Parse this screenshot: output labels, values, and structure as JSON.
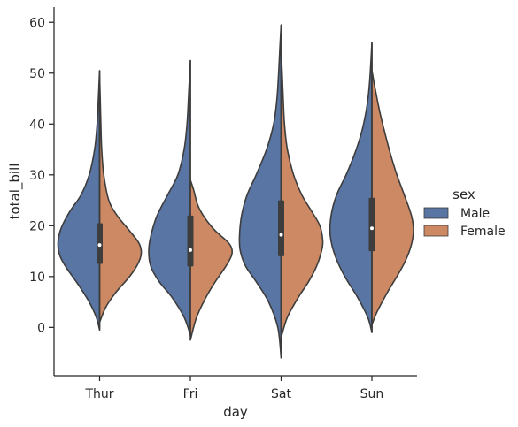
{
  "chart_data": {
    "type": "violin",
    "split": true,
    "xlabel": "day",
    "ylabel": "total_bill",
    "ylim": [
      -9.5,
      63
    ],
    "yticks": [
      0,
      10,
      20,
      30,
      40,
      50,
      60
    ],
    "categories": [
      "Thur",
      "Fri",
      "Sat",
      "Sun"
    ],
    "legend": {
      "title": "sex",
      "placement": "right",
      "entries": [
        "Male",
        "Female"
      ]
    },
    "grid": false,
    "colors": {
      "Male": "#5975a4",
      "Female": "#cc8963",
      "outline": "#3d3d3d",
      "median_dot": "#ffffff"
    },
    "series": [
      {
        "name": "Male",
        "violins": [
          {
            "category": "Thur",
            "min": -0.5,
            "max": 50.5,
            "q1": 12.5,
            "median": 16.2,
            "q3": 20.5,
            "profile": [
              [
                -0.5,
                0.0
              ],
              [
                2,
                0.08
              ],
              [
                5,
                0.25
              ],
              [
                8,
                0.48
              ],
              [
                10,
                0.65
              ],
              [
                12,
                0.82
              ],
              [
                14,
                0.95
              ],
              [
                16,
                1.0
              ],
              [
                18,
                0.98
              ],
              [
                20,
                0.9
              ],
              [
                23,
                0.7
              ],
              [
                26,
                0.45
              ],
              [
                30,
                0.25
              ],
              [
                35,
                0.12
              ],
              [
                40,
                0.06
              ],
              [
                45,
                0.03
              ],
              [
                50.5,
                0.0
              ]
            ]
          },
          {
            "category": "Fri",
            "min": -1.5,
            "max": 52.5,
            "q1": 12,
            "median": 15.2,
            "q3": 22,
            "profile": [
              [
                -1.5,
                0.0
              ],
              [
                2,
                0.15
              ],
              [
                6,
                0.45
              ],
              [
                9,
                0.75
              ],
              [
                12,
                0.95
              ],
              [
                15,
                1.0
              ],
              [
                18,
                0.95
              ],
              [
                22,
                0.8
              ],
              [
                26,
                0.55
              ],
              [
                30,
                0.3
              ],
              [
                35,
                0.15
              ],
              [
                40,
                0.08
              ],
              [
                46,
                0.04
              ],
              [
                52.5,
                0.0
              ]
            ]
          },
          {
            "category": "Sat",
            "min": -6,
            "max": 59.5,
            "q1": 14,
            "median": 18.2,
            "q3": 25,
            "profile": [
              [
                -6,
                0.0
              ],
              [
                0,
                0.08
              ],
              [
                5,
                0.3
              ],
              [
                9,
                0.6
              ],
              [
                12,
                0.85
              ],
              [
                15,
                0.98
              ],
              [
                18,
                1.0
              ],
              [
                22,
                0.95
              ],
              [
                26,
                0.82
              ],
              [
                30,
                0.6
              ],
              [
                35,
                0.35
              ],
              [
                40,
                0.18
              ],
              [
                45,
                0.1
              ],
              [
                50,
                0.06
              ],
              [
                55,
                0.03
              ],
              [
                59.5,
                0.0
              ]
            ]
          },
          {
            "category": "Sun",
            "min": -1,
            "max": 56,
            "q1": 15,
            "median": 19.5,
            "q3": 25.5,
            "profile": [
              [
                -1,
                0.0
              ],
              [
                2,
                0.1
              ],
              [
                6,
                0.35
              ],
              [
                10,
                0.65
              ],
              [
                14,
                0.88
              ],
              [
                18,
                1.0
              ],
              [
                22,
                0.98
              ],
              [
                26,
                0.85
              ],
              [
                30,
                0.62
              ],
              [
                34,
                0.42
              ],
              [
                38,
                0.26
              ],
              [
                42,
                0.15
              ],
              [
                46,
                0.08
              ],
              [
                50,
                0.04
              ],
              [
                56,
                0.0
              ]
            ]
          }
        ]
      },
      {
        "name": "Female",
        "violins": [
          {
            "category": "Thur",
            "min": 1,
            "max": 49.5,
            "profile": [
              [
                1,
                0.0
              ],
              [
                4,
                0.15
              ],
              [
                7,
                0.4
              ],
              [
                10,
                0.72
              ],
              [
                12.5,
                0.92
              ],
              [
                14.5,
                1.0
              ],
              [
                16.5,
                0.95
              ],
              [
                19,
                0.72
              ],
              [
                22,
                0.42
              ],
              [
                25,
                0.22
              ],
              [
                30,
                0.1
              ],
              [
                35,
                0.05
              ],
              [
                40,
                0.03
              ],
              [
                45,
                0.015
              ],
              [
                49.5,
                0.0
              ]
            ]
          },
          {
            "category": "Fri",
            "min": -2.5,
            "max": 29,
            "profile": [
              [
                -2.5,
                0.0
              ],
              [
                2,
                0.15
              ],
              [
                6,
                0.38
              ],
              [
                9,
                0.6
              ],
              [
                12,
                0.85
              ],
              [
                14.5,
                1.0
              ],
              [
                16.5,
                0.93
              ],
              [
                19,
                0.6
              ],
              [
                21.5,
                0.35
              ],
              [
                24,
                0.18
              ],
              [
                27,
                0.08
              ],
              [
                29,
                0.0
              ]
            ]
          },
          {
            "category": "Sat",
            "min": -2,
            "max": 54.5,
            "profile": [
              [
                -2,
                0.0
              ],
              [
                2,
                0.15
              ],
              [
                6,
                0.42
              ],
              [
                9,
                0.66
              ],
              [
                12,
                0.85
              ],
              [
                15,
                0.97
              ],
              [
                17,
                1.0
              ],
              [
                20,
                0.93
              ],
              [
                23,
                0.72
              ],
              [
                26,
                0.5
              ],
              [
                30,
                0.3
              ],
              [
                35,
                0.15
              ],
              [
                40,
                0.08
              ],
              [
                45,
                0.05
              ],
              [
                50,
                0.025
              ],
              [
                54.5,
                0.0
              ]
            ]
          },
          {
            "category": "Sun",
            "min": 0.5,
            "max": 50.5,
            "profile": [
              [
                0.5,
                0.0
              ],
              [
                3,
                0.12
              ],
              [
                7,
                0.38
              ],
              [
                10,
                0.6
              ],
              [
                13,
                0.8
              ],
              [
                16,
                0.94
              ],
              [
                19,
                1.0
              ],
              [
                22,
                0.95
              ],
              [
                26,
                0.78
              ],
              [
                30,
                0.6
              ],
              [
                34,
                0.45
              ],
              [
                38,
                0.32
              ],
              [
                42,
                0.2
              ],
              [
                46,
                0.1
              ],
              [
                50.5,
                0.0
              ]
            ]
          }
        ]
      }
    ]
  }
}
